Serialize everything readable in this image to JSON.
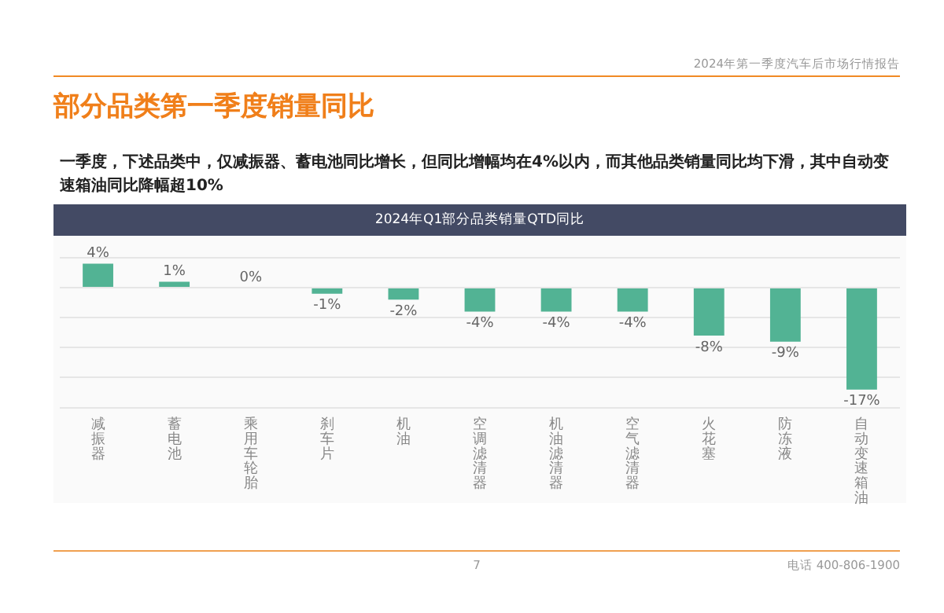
{
  "chart_data": {
    "type": "bar",
    "title": "部分品类第一季度销量同比",
    "subtitle": "一季度，下述品类中，仅减振器、蓄电池同比增长，但同比增幅均在4%以内，而其他品类销量同比均下滑，其中自动变速箱油同比降幅超10%",
    "annotations": [
      "2024年第一季度汽车后市场行情报告",
      "2024年Q1部分品类销量QTD同比",
      "7",
      "电话 400-806-1900"
    ],
    "categories": [
      "减振器",
      "蓄电池",
      "乘用车轮胎",
      "刹车片",
      "机油",
      "空调滤清器",
      "机油滤清器",
      "空气滤清器",
      "火花塞",
      "防冻液",
      "自动变速箱油"
    ],
    "values": [
      4,
      1,
      0,
      -1,
      -2,
      -4,
      -4,
      -4,
      -8,
      -9,
      -17
    ],
    "value_labels": [
      "4%",
      "1%",
      "0%",
      "-1%",
      "-2%",
      "-4%",
      "-4%",
      "-4%",
      "-8%",
      "-9%",
      "-17%"
    ],
    "color": "#52b394",
    "ylim": [
      -20,
      5
    ],
    "yticks": [
      {
        "value": 5,
        "label": null
      },
      {
        "value": 0,
        "label": null
      },
      {
        "value": -5,
        "label": null
      },
      {
        "value": -10,
        "label": null
      },
      {
        "value": -15,
        "label": null
      },
      {
        "value": -20,
        "label": null
      }
    ],
    "grid": "y",
    "tick_labels": "x",
    "legend": false
  }
}
